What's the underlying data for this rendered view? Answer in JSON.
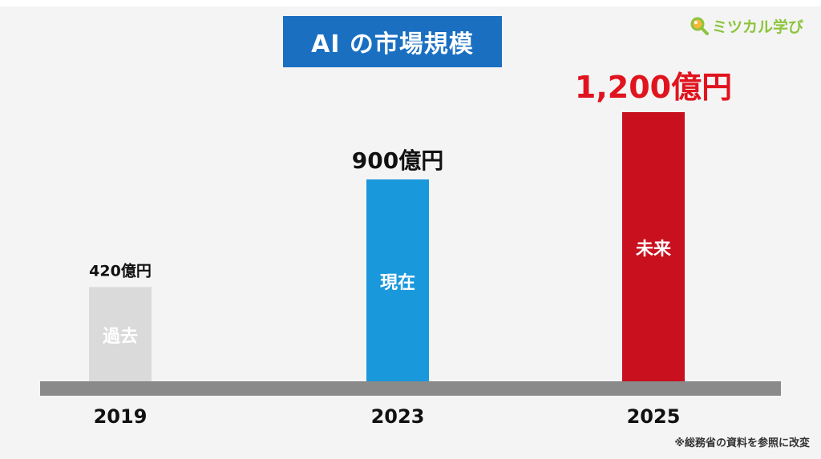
{
  "title": "AI の市場規模",
  "logo": {
    "text": "ミツカル学び",
    "icon": "magnifier-icon"
  },
  "source_note": "※総務省の資料を参照に改変",
  "colors": {
    "title_bg": "#1a6fc1",
    "past": "#dadada",
    "present": "#1a98dc",
    "future": "#c8101f",
    "baseline": "#8a8a8a",
    "future_label": "#e0141e",
    "logo": "#8cc43c"
  },
  "chart_data": {
    "type": "bar",
    "categories": [
      "2019",
      "2023",
      "2025"
    ],
    "values": [
      420,
      900,
      1200
    ],
    "value_labels": [
      "420億円",
      "900億円",
      "1,200億円"
    ],
    "bar_labels": [
      "過去",
      "現在",
      "未来"
    ],
    "ylim": [
      0,
      1200
    ],
    "grid": false,
    "legend": "none"
  }
}
